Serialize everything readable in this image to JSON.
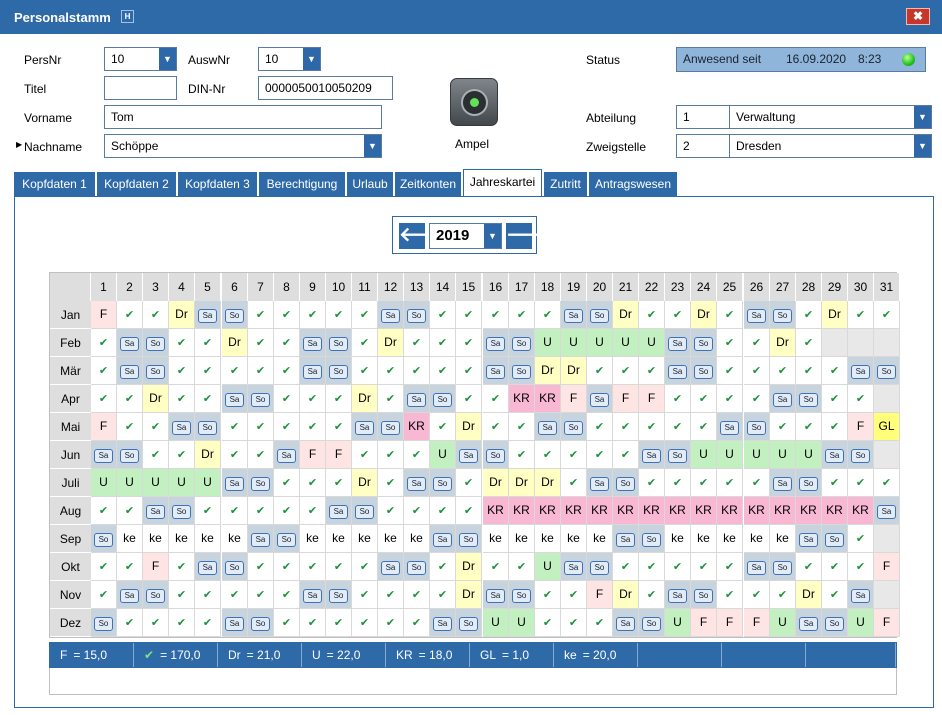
{
  "window": {
    "title": "Personalstamm",
    "badge": "H",
    "close": "✖"
  },
  "form": {
    "persnr_label": "PersNr",
    "persnr_value": "10",
    "auswnr_label": "AuswNr",
    "auswnr_value": "10",
    "titel_label": "Titel",
    "titel_value": "",
    "dinnr_label": "DIN-Nr",
    "dinnr_value": "0000050010050209",
    "vorname_label": "Vorname",
    "vorname_value": "Tom",
    "nachname_label": "Nachname",
    "nachname_value": "Schöppe",
    "ampel_label": "Ampel",
    "status_label": "Status",
    "status_value": "Anwesend seit",
    "status_date": "16.09.2020",
    "status_time": "8:23",
    "abteilung_label": "Abteilung",
    "abteilung_nr": "1",
    "abteilung_value": "Verwaltung",
    "zweigstelle_label": "Zweigstelle",
    "zweigstelle_nr": "2",
    "zweigstelle_value": "Dresden"
  },
  "tabs": [
    "Kopfdaten 1",
    "Kopfdaten 2",
    "Kopfdaten 3",
    "Berechtigung",
    "Urlaub",
    "Zeitkonten",
    "Jahreskartei",
    "Zutritt",
    "Antragswesen"
  ],
  "active_tab": "Jahreskartei",
  "year": {
    "value": "2019",
    "prev": "🡐",
    "next": "🡒"
  },
  "calendar": {
    "days": [
      "1",
      "2",
      "3",
      "4",
      "5",
      "6",
      "7",
      "8",
      "9",
      "10",
      "11",
      "12",
      "13",
      "14",
      "15",
      "16",
      "17",
      "18",
      "19",
      "20",
      "21",
      "22",
      "23",
      "24",
      "25",
      "26",
      "27",
      "28",
      "29",
      "30",
      "31"
    ],
    "months": [
      {
        "name": "Jan",
        "cells": [
          "F",
          "w",
          "w",
          "Dr",
          "Sa",
          "So",
          "w",
          "w",
          "w",
          "w",
          "w",
          "Sa",
          "So",
          "w",
          "w",
          "w",
          "w",
          "w",
          "Sa",
          "So",
          "Dr",
          "w",
          "w",
          "Dr",
          "w",
          "Sa",
          "So",
          "w",
          "Dr",
          "w",
          "w"
        ]
      },
      {
        "name": "Feb",
        "cells": [
          "w",
          "Sa",
          "So",
          "w",
          "w",
          "Dr",
          "w",
          "w",
          "Sa",
          "So",
          "w",
          "Dr",
          "w",
          "w",
          "w",
          "Sa",
          "So",
          "U",
          "U",
          "U",
          "U",
          "U",
          "Sa",
          "So",
          "w",
          "w",
          "Dr",
          "w",
          "",
          "",
          ""
        ]
      },
      {
        "name": "Mär",
        "cells": [
          "w",
          "Sa",
          "So",
          "w",
          "w",
          "w",
          "w",
          "w",
          "Sa",
          "So",
          "w",
          "w",
          "w",
          "w",
          "w",
          "Sa",
          "So",
          "Dr",
          "Dr",
          "w",
          "w",
          "w",
          "Sa",
          "So",
          "w",
          "w",
          "w",
          "w",
          "w",
          "Sa",
          "So"
        ]
      },
      {
        "name": "Apr",
        "cells": [
          "w",
          "w",
          "Dr",
          "w",
          "w",
          "Sa",
          "So",
          "w",
          "w",
          "w",
          "Dr",
          "w",
          "Sa",
          "So",
          "w",
          "w",
          "KR",
          "KR",
          "F",
          "Sa",
          "F",
          "F",
          "w",
          "w",
          "w",
          "w",
          "Sa",
          "So",
          "w",
          "w",
          ""
        ]
      },
      {
        "name": "Mai",
        "cells": [
          "F",
          "w",
          "w",
          "Sa",
          "So",
          "w",
          "w",
          "w",
          "w",
          "w",
          "Sa",
          "So",
          "KR",
          "w",
          "Dr",
          "w",
          "w",
          "Sa",
          "So",
          "w",
          "w",
          "w",
          "w",
          "w",
          "Sa",
          "So",
          "w",
          "w",
          "w",
          "F",
          "GL"
        ]
      },
      {
        "name": "Jun",
        "cells": [
          "Sa",
          "So",
          "w",
          "w",
          "Dr",
          "w",
          "w",
          "Sa",
          "F",
          "F",
          "w",
          "w",
          "w",
          "U",
          "Sa",
          "So",
          "w",
          "w",
          "w",
          "w",
          "w",
          "Sa",
          "So",
          "U",
          "U",
          "U",
          "U",
          "U",
          "Sa",
          "So",
          ""
        ]
      },
      {
        "name": "Juli",
        "cells": [
          "U",
          "U",
          "U",
          "U",
          "U",
          "Sa",
          "So",
          "w",
          "w",
          "w",
          "Dr",
          "w",
          "Sa",
          "So",
          "w",
          "Dr",
          "Dr",
          "Dr",
          "w",
          "Sa",
          "So",
          "w",
          "w",
          "w",
          "w",
          "w",
          "Sa",
          "So",
          "w",
          "w",
          "w"
        ]
      },
      {
        "name": "Aug",
        "cells": [
          "w",
          "w",
          "Sa",
          "So",
          "w",
          "w",
          "w",
          "w",
          "w",
          "Sa",
          "So",
          "w",
          "w",
          "w",
          "w",
          "KR",
          "KR",
          "KR",
          "KR",
          "KR",
          "KR",
          "KR",
          "KR",
          "KR",
          "KR",
          "KR",
          "KR",
          "KR",
          "KR",
          "KR",
          "Sa"
        ]
      },
      {
        "name": "Sep",
        "cells": [
          "So",
          "ke",
          "ke",
          "ke",
          "ke",
          "ke",
          "Sa",
          "So",
          "ke",
          "ke",
          "ke",
          "ke",
          "ke",
          "Sa",
          "So",
          "ke",
          "ke",
          "ke",
          "ke",
          "ke",
          "Sa",
          "So",
          "ke",
          "ke",
          "ke",
          "ke",
          "ke",
          "Sa",
          "So",
          "w",
          ""
        ]
      },
      {
        "name": "Okt",
        "cells": [
          "w",
          "w",
          "F",
          "w",
          "Sa",
          "So",
          "w",
          "w",
          "w",
          "w",
          "w",
          "Sa",
          "So",
          "w",
          "Dr",
          "w",
          "w",
          "U",
          "Sa",
          "So",
          "w",
          "w",
          "w",
          "w",
          "w",
          "Sa",
          "So",
          "w",
          "w",
          "w",
          "F"
        ]
      },
      {
        "name": "Nov",
        "cells": [
          "w",
          "Sa",
          "So",
          "w",
          "w",
          "w",
          "w",
          "w",
          "Sa",
          "So",
          "w",
          "w",
          "w",
          "w",
          "Dr",
          "Sa",
          "So",
          "w",
          "w",
          "F",
          "Dr",
          "w",
          "Sa",
          "So",
          "w",
          "w",
          "w",
          "Dr",
          "w",
          "Sa",
          ""
        ]
      },
      {
        "name": "Dez",
        "cells": [
          "So",
          "w",
          "w",
          "w",
          "w",
          "Sa",
          "So",
          "w",
          "w",
          "w",
          "w",
          "w",
          "w",
          "Sa",
          "So",
          "U",
          "U",
          "w",
          "w",
          "w",
          "Sa",
          "So",
          "U",
          "F",
          "F",
          "F",
          "U",
          "Sa",
          "So",
          "U",
          "F"
        ]
      }
    ]
  },
  "summary": [
    {
      "code": "F",
      "value": "= 15,0"
    },
    {
      "code": "✔",
      "value": "= 170,0"
    },
    {
      "code": "Dr",
      "value": "= 21,0"
    },
    {
      "code": "U",
      "value": "= 22,0"
    },
    {
      "code": "KR",
      "value": "= 18,0"
    },
    {
      "code": "GL",
      "value": "= 1,0"
    },
    {
      "code": "ke",
      "value": "= 20,0"
    }
  ],
  "colors": {
    "accent": "#2f6aa8",
    "weekend": "#c7d4de",
    "dr": "#ffffc4",
    "f": "#ffe4e4",
    "u": "#c2f0c0",
    "kr": "#f8b8d4",
    "gl": "#ffff7a"
  }
}
